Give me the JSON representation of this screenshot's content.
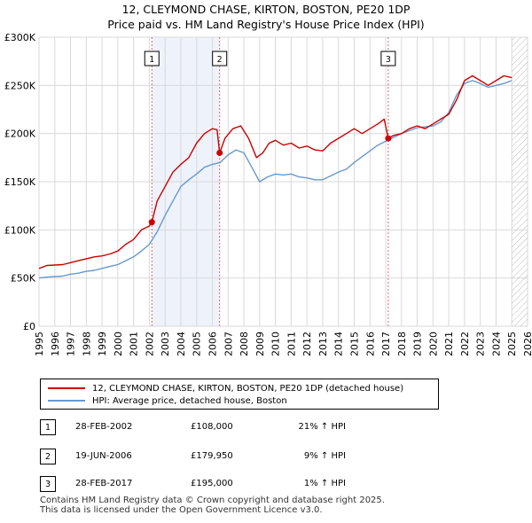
{
  "title_line1": "12, CLEYMOND CHASE, KIRTON, BOSTON, PE20 1DP",
  "title_line2": "Price paid vs. HM Land Registry's House Price Index (HPI)",
  "chart_data": {
    "type": "line",
    "title": "12, CLEYMOND CHASE, KIRTON, BOSTON, PE20 1DP — Price paid vs. HM Land Registry's House Price Index (HPI)",
    "xlim": [
      1995,
      2026
    ],
    "ylim": [
      0,
      300000
    ],
    "y_ticks": [
      {
        "value": 0,
        "label": "£0"
      },
      {
        "value": 50000,
        "label": "£50K"
      },
      {
        "value": 100000,
        "label": "£100K"
      },
      {
        "value": 150000,
        "label": "£150K"
      },
      {
        "value": 200000,
        "label": "£200K"
      },
      {
        "value": 250000,
        "label": "£250K"
      },
      {
        "value": 300000,
        "label": "£300K"
      }
    ],
    "x_ticks": [
      "1995",
      "1996",
      "1997",
      "1998",
      "1999",
      "2000",
      "2001",
      "2002",
      "2003",
      "2004",
      "2005",
      "2006",
      "2007",
      "2008",
      "2009",
      "2010",
      "2011",
      "2012",
      "2013",
      "2014",
      "2015",
      "2016",
      "2017",
      "2018",
      "2019",
      "2020",
      "2021",
      "2022",
      "2023",
      "2024",
      "2025",
      "2026"
    ],
    "grid": true,
    "shaded_regions": [
      [
        2002.16,
        2006.46
      ],
      [
        2017.16,
        2017.16
      ]
    ],
    "future_hatch_from": 2025.0,
    "series": [
      {
        "name": "12, CLEYMOND CHASE, KIRTON, BOSTON, PE20 1DP (detached house)",
        "color": "#cc0000",
        "x": [
          1995.0,
          1995.5,
          1996.0,
          1996.5,
          1997.0,
          1997.5,
          1998.0,
          1998.5,
          1999.0,
          1999.5,
          2000.0,
          2000.5,
          2001.0,
          2001.5,
          2002.0,
          2002.16,
          2002.5,
          2003.0,
          2003.5,
          2004.0,
          2004.5,
          2005.0,
          2005.5,
          2006.0,
          2006.3,
          2006.46,
          2006.8,
          2007.3,
          2007.8,
          2008.3,
          2008.8,
          2009.2,
          2009.6,
          2010.0,
          2010.5,
          2011.0,
          2011.5,
          2012.0,
          2012.5,
          2013.0,
          2013.5,
          2014.0,
          2014.5,
          2015.0,
          2015.5,
          2016.0,
          2016.5,
          2016.9,
          2017.16,
          2017.5,
          2018.0,
          2018.5,
          2019.0,
          2019.5,
          2020.0,
          2020.5,
          2021.0,
          2021.5,
          2022.0,
          2022.5,
          2023.0,
          2023.5,
          2024.0,
          2024.5,
          2025.0
        ],
        "values": [
          60000,
          63000,
          63500,
          64000,
          66000,
          68000,
          70000,
          72000,
          73000,
          75000,
          78000,
          85000,
          90000,
          100000,
          104000,
          108000,
          130000,
          145000,
          160000,
          168000,
          175000,
          190000,
          200000,
          205000,
          204000,
          179950,
          195000,
          205000,
          208000,
          195000,
          175000,
          180000,
          190000,
          193000,
          188000,
          190000,
          185000,
          187000,
          183000,
          182000,
          190000,
          195000,
          200000,
          205000,
          200000,
          205000,
          210000,
          215000,
          195000,
          198000,
          200000,
          205000,
          208000,
          205000,
          210000,
          215000,
          220000,
          235000,
          255000,
          260000,
          255000,
          250000,
          255000,
          260000,
          258000
        ]
      },
      {
        "name": "HPI: Average price, detached house, Boston",
        "color": "#6699cc",
        "x": [
          1995.0,
          1995.5,
          1996.0,
          1996.5,
          1997.0,
          1997.5,
          1998.0,
          1998.5,
          1999.0,
          1999.5,
          2000.0,
          2000.5,
          2001.0,
          2001.5,
          2002.0,
          2002.5,
          2003.0,
          2003.5,
          2004.0,
          2004.5,
          2005.0,
          2005.5,
          2006.0,
          2006.5,
          2007.0,
          2007.5,
          2008.0,
          2008.5,
          2009.0,
          2009.5,
          2010.0,
          2010.5,
          2011.0,
          2011.5,
          2012.0,
          2012.5,
          2013.0,
          2013.5,
          2014.0,
          2014.5,
          2015.0,
          2015.5,
          2016.0,
          2016.5,
          2017.0,
          2017.5,
          2018.0,
          2018.5,
          2019.0,
          2019.5,
          2020.0,
          2020.5,
          2021.0,
          2021.5,
          2022.0,
          2022.5,
          2023.0,
          2023.5,
          2024.0,
          2024.5,
          2025.0
        ],
        "values": [
          50000,
          51000,
          51500,
          52000,
          54000,
          55000,
          57000,
          58000,
          60000,
          62000,
          64000,
          68000,
          72000,
          78000,
          85000,
          98000,
          115000,
          130000,
          145000,
          152000,
          158000,
          165000,
          168000,
          170000,
          178000,
          183000,
          180000,
          165000,
          150000,
          155000,
          158000,
          157000,
          158000,
          155000,
          154000,
          152000,
          152000,
          156000,
          160000,
          163000,
          170000,
          176000,
          182000,
          188000,
          192000,
          196000,
          200000,
          203000,
          206000,
          207000,
          208000,
          212000,
          222000,
          240000,
          252000,
          255000,
          252000,
          248000,
          250000,
          252000,
          255000
        ]
      }
    ],
    "transactions": [
      {
        "label": "1",
        "x": 2002.16,
        "value": 108000
      },
      {
        "label": "2",
        "x": 2006.46,
        "value": 179950
      },
      {
        "label": "3",
        "x": 2017.16,
        "value": 195000
      }
    ]
  },
  "legend": {
    "property_label": "12, CLEYMOND CHASE, KIRTON, BOSTON, PE20 1DP (detached house)",
    "hpi_label": "HPI: Average price, detached house, Boston",
    "property_color": "#cc0000",
    "hpi_color": "#6699cc"
  },
  "transactions_table": [
    {
      "num": "1",
      "date": "28-FEB-2002",
      "price": "£108,000",
      "hpi": "21% ↑ HPI"
    },
    {
      "num": "2",
      "date": "19-JUN-2006",
      "price": "£179,950",
      "hpi": "9% ↑ HPI"
    },
    {
      "num": "3",
      "date": "28-FEB-2017",
      "price": "£195,000",
      "hpi": "1% ↑ HPI"
    }
  ],
  "footer_line1": "Contains HM Land Registry data © Crown copyright and database right 2025.",
  "footer_line2": "This data is licensed under the Open Government Licence v3.0."
}
